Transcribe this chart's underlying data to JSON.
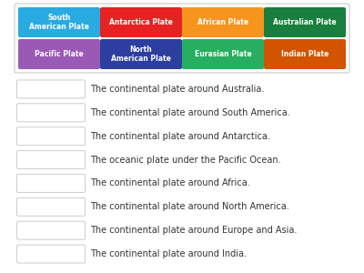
{
  "bg_color": "#ffffff",
  "border_color": "#cccccc",
  "chips": [
    {
      "label": "South\nAmerican Plate",
      "color": "#29abe2",
      "row": 0,
      "col": 0
    },
    {
      "label": "Antarctica Plate",
      "color": "#e62222",
      "row": 0,
      "col": 1
    },
    {
      "label": "African Plate",
      "color": "#f7941d",
      "row": 0,
      "col": 2
    },
    {
      "label": "Australian Plate",
      "color": "#1a7e3e",
      "row": 0,
      "col": 3
    },
    {
      "label": "Pacific Plate",
      "color": "#9b59b6",
      "row": 1,
      "col": 0
    },
    {
      "label": "North\nAmerican Plate",
      "color": "#2c3fa0",
      "row": 1,
      "col": 1
    },
    {
      "label": "Eurasian Plate",
      "color": "#27ae60",
      "row": 1,
      "col": 2
    },
    {
      "label": "Indian Plate",
      "color": "#d35400",
      "row": 1,
      "col": 3
    }
  ],
  "questions": [
    "The continental plate around Australia.",
    "The continental plate around South America.",
    "The continental plate around Antarctica.",
    "The oceanic plate under the Pacific Ocean.",
    "The continental plate around Africa.",
    "The continental plate around North America.",
    "The continental plate around Europe and Asia.",
    "The continental plate around India."
  ],
  "text_color": "#333333",
  "chip_text_color": "#ffffff",
  "chip_fontsize": 5.5,
  "question_fontsize": 7.0,
  "box_border_color": "#cccccc",
  "outer_border_color": "#cccccc"
}
